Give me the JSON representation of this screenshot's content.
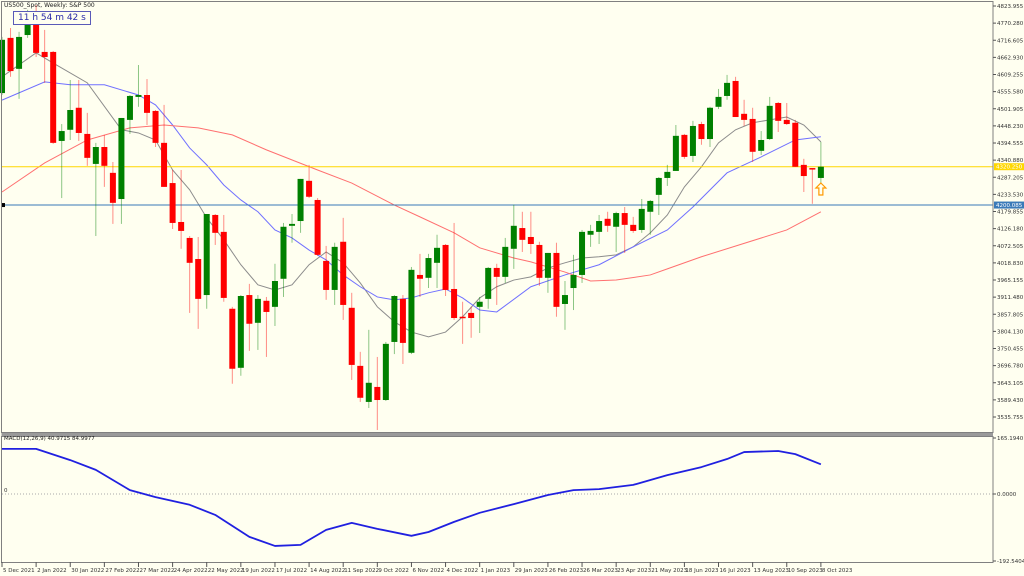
{
  "window": {
    "title": "US500_Spot, Weekly:  S&P 500",
    "timer": "11 h 54 m 42 s"
  },
  "colors": {
    "background": "#fffff0",
    "bull": "#008000",
    "bear": "#ff0000",
    "ma_fast": "#8c8c8c",
    "ma_mid": "#7070ff",
    "ma_slow": "#ff7070",
    "macd": "#2020e0",
    "hline_price": "#ffd700",
    "hline_level": "#3a7ab8",
    "arrow": "#ff9900"
  },
  "chart_data": [
    {
      "type": "candlestick",
      "title": "US500_Spot, Weekly:  S&P 500",
      "price_ticks": [
        "4823.955",
        "4770.280",
        "4716.605",
        "4662.930",
        "4609.255",
        "4555.580",
        "4501.905",
        "4448.230",
        "4394.555",
        "4340.880",
        "4287.205",
        "4233.530",
        "4179.855",
        "4126.180",
        "4072.505",
        "4018.830",
        "3965.155",
        "3911.480",
        "3857.805",
        "3804.130",
        "3750.455",
        "3696.780",
        "3643.105",
        "3589.430",
        "3535.755"
      ],
      "ylim": [
        3535.755,
        4823.955
      ],
      "date_labels": [
        {
          "i": 0,
          "label": "5 Dec 2021"
        },
        {
          "i": 4,
          "label": "2 Jan 2022"
        },
        {
          "i": 8,
          "label": "30 Jan 2022"
        },
        {
          "i": 12,
          "label": "27 Feb 2022"
        },
        {
          "i": 16,
          "label": "27 Mar 2022"
        },
        {
          "i": 20,
          "label": "24 Apr 2022"
        },
        {
          "i": 24,
          "label": "22 May 2022"
        },
        {
          "i": 28,
          "label": "19 Jun 2022"
        },
        {
          "i": 32,
          "label": "17 Jul 2022"
        },
        {
          "i": 36,
          "label": "14 Aug 2022"
        },
        {
          "i": 40,
          "label": "11 Sep 2022"
        },
        {
          "i": 44,
          "label": "9 Oct 2022"
        },
        {
          "i": 48,
          "label": "6 Nov 2022"
        },
        {
          "i": 52,
          "label": "4 Dec 2022"
        },
        {
          "i": 56,
          "label": "1 Jan 2023"
        },
        {
          "i": 60,
          "label": "29 Jan 2023"
        },
        {
          "i": 64,
          "label": "26 Feb 2023"
        },
        {
          "i": 68,
          "label": "26 Mar 2023"
        },
        {
          "i": 72,
          "label": "23 Apr 2023"
        },
        {
          "i": 76,
          "label": "21 May 2023"
        },
        {
          "i": 80,
          "label": "18 Jun 2023"
        },
        {
          "i": 84,
          "label": "16 Jul 2023"
        },
        {
          "i": 88,
          "label": "13 Aug 2023"
        },
        {
          "i": 92,
          "label": "10 Sep 2023"
        },
        {
          "i": 96,
          "label": "8 Oct 2023"
        }
      ],
      "ohlc": [
        [
          4551,
          4727,
          4545,
          4718
        ],
        [
          4724,
          4755,
          4602,
          4620
        ],
        [
          4627,
          4743,
          4533,
          4727
        ],
        [
          4733,
          4812,
          4724,
          4787
        ],
        [
          4787,
          4827,
          4664,
          4677
        ],
        [
          4680,
          4749,
          4583,
          4664
        ],
        [
          4680,
          4683,
          4392,
          4395
        ],
        [
          4401,
          4454,
          4222,
          4432
        ],
        [
          4436,
          4592,
          4404,
          4498
        ],
        [
          4505,
          4592,
          4401,
          4426
        ],
        [
          4423,
          4489,
          4323,
          4348
        ],
        [
          4329,
          4395,
          4103,
          4382
        ],
        [
          4382,
          4420,
          4257,
          4323
        ],
        [
          4301,
          4335,
          4141,
          4207
        ],
        [
          4219,
          4473,
          4141,
          4473
        ],
        [
          4467,
          4545,
          4423,
          4542
        ],
        [
          4539,
          4639,
          4508,
          4545
        ],
        [
          4545,
          4595,
          4451,
          4489
        ],
        [
          4495,
          4498,
          4382,
          4395
        ],
        [
          4395,
          4514,
          4257,
          4257
        ],
        [
          4269,
          4310,
          4125,
          4144
        ],
        [
          4147,
          4310,
          4063,
          4119
        ],
        [
          4097,
          4103,
          3862,
          4019
        ],
        [
          4031,
          4100,
          3812,
          3906
        ],
        [
          3918,
          4172,
          3875,
          4172
        ],
        [
          4169,
          4172,
          4075,
          4113
        ],
        [
          4116,
          4169,
          3897,
          3909
        ],
        [
          3875,
          3881,
          3640,
          3687
        ],
        [
          3690,
          3918,
          3665,
          3915
        ],
        [
          3918,
          3953,
          3743,
          3828
        ],
        [
          3831,
          3918,
          3746,
          3906
        ],
        [
          3900,
          3912,
          3724,
          3865
        ],
        [
          3881,
          4016,
          3821,
          3962
        ],
        [
          3969,
          4144,
          3912,
          4132
        ],
        [
          4135,
          4172,
          4082,
          4141
        ],
        [
          4150,
          4282,
          4113,
          4282
        ],
        [
          4276,
          4326,
          4222,
          4226
        ],
        [
          4216,
          4222,
          4041,
          4044
        ],
        [
          4025,
          4072,
          3903,
          3934
        ],
        [
          3934,
          4082,
          3887,
          4069
        ],
        [
          4085,
          4160,
          3840,
          3887
        ],
        [
          3878,
          3925,
          3652,
          3699
        ],
        [
          3696,
          3740,
          3583,
          3596
        ],
        [
          3583,
          3809,
          3564,
          3643
        ],
        [
          3630,
          3724,
          3495,
          3589
        ],
        [
          3589,
          3771,
          3586,
          3765
        ],
        [
          3771,
          3918,
          3733,
          3915
        ],
        [
          3906,
          3918,
          3702,
          3768
        ],
        [
          3737,
          4006,
          3733,
          3997
        ],
        [
          3981,
          4047,
          3912,
          3969
        ],
        [
          3972,
          4047,
          3940,
          4034
        ],
        [
          4019,
          4107,
          3940,
          4066
        ],
        [
          4075,
          4078,
          3915,
          3934
        ],
        [
          3937,
          4144,
          3840,
          3846
        ],
        [
          3850,
          3897,
          3765,
          3846
        ],
        [
          3862,
          3881,
          3784,
          3846
        ],
        [
          3881,
          3912,
          3799,
          3897
        ],
        [
          3906,
          4006,
          3875,
          4003
        ],
        [
          4003,
          4016,
          3887,
          3975
        ],
        [
          3975,
          4097,
          3956,
          4069
        ],
        [
          4063,
          4201,
          4000,
          4135
        ],
        [
          4128,
          4179,
          4053,
          4091
        ],
        [
          4100,
          4179,
          4047,
          4078
        ],
        [
          4075,
          4085,
          3947,
          3972
        ],
        [
          3972,
          4050,
          3925,
          4050
        ],
        [
          4050,
          4082,
          3850,
          3881
        ],
        [
          3890,
          3962,
          3809,
          3918
        ],
        [
          3940,
          4044,
          3871,
          3981
        ],
        [
          3981,
          4122,
          3956,
          4116
        ],
        [
          4107,
          4138,
          4069,
          4119
        ],
        [
          4116,
          4169,
          4078,
          4150
        ],
        [
          4157,
          4179,
          4116,
          4135
        ],
        [
          4132,
          4179,
          4053,
          4175
        ],
        [
          4175,
          4194,
          4050,
          4138
        ],
        [
          4138,
          4163,
          4113,
          4119
        ],
        [
          4122,
          4219,
          4113,
          4188
        ],
        [
          4179,
          4216,
          4107,
          4213
        ],
        [
          4232,
          4288,
          4169,
          4285
        ],
        [
          4285,
          4326,
          4260,
          4304
        ],
        [
          4307,
          4451,
          4307,
          4417
        ],
        [
          4420,
          4423,
          4345,
          4351
        ],
        [
          4354,
          4464,
          4335,
          4448
        ],
        [
          4454,
          4461,
          4389,
          4407
        ],
        [
          4407,
          4508,
          4382,
          4505
        ],
        [
          4508,
          4564,
          4501,
          4539
        ],
        [
          4542,
          4608,
          4530,
          4583
        ],
        [
          4589,
          4602,
          4476,
          4476
        ],
        [
          4486,
          4530,
          4448,
          4467
        ],
        [
          4470,
          4505,
          4335,
          4367
        ],
        [
          4370,
          4432,
          4357,
          4404
        ],
        [
          4407,
          4539,
          4404,
          4511
        ],
        [
          4520,
          4523,
          4429,
          4464
        ],
        [
          4467,
          4520,
          4451,
          4454
        ],
        [
          4458,
          4467,
          4320,
          4320
        ],
        [
          4326,
          4345,
          4241,
          4291
        ],
        [
          4316,
          4316,
          4204,
          4313
        ],
        [
          4285,
          4398,
          4269,
          4320.25
        ]
      ],
      "ma_fast": [
        [
          0,
          4602
        ],
        [
          4,
          4677
        ],
        [
          6,
          4645
        ],
        [
          10,
          4583
        ],
        [
          14,
          4436
        ],
        [
          16,
          4426
        ],
        [
          18,
          4404
        ],
        [
          20,
          4310
        ],
        [
          22,
          4248
        ],
        [
          24,
          4160
        ],
        [
          26,
          4091
        ],
        [
          28,
          4013
        ],
        [
          30,
          3950
        ],
        [
          32,
          3934
        ],
        [
          34,
          3950
        ],
        [
          36,
          4013
        ],
        [
          38,
          4053
        ],
        [
          40,
          4019
        ],
        [
          42,
          3956
        ],
        [
          44,
          3881
        ],
        [
          46,
          3834
        ],
        [
          48,
          3802
        ],
        [
          50,
          3787
        ],
        [
          52,
          3802
        ],
        [
          54,
          3850
        ],
        [
          56,
          3909
        ],
        [
          58,
          3944
        ],
        [
          60,
          3965
        ],
        [
          62,
          3975
        ],
        [
          64,
          4003
        ],
        [
          66,
          4019
        ],
        [
          68,
          4034
        ],
        [
          70,
          4038
        ],
        [
          72,
          4044
        ],
        [
          74,
          4069
        ],
        [
          76,
          4113
        ],
        [
          78,
          4169
        ],
        [
          80,
          4257
        ],
        [
          82,
          4320
        ],
        [
          84,
          4395
        ],
        [
          86,
          4436
        ],
        [
          88,
          4458
        ],
        [
          90,
          4467
        ],
        [
          92,
          4476
        ],
        [
          94,
          4451
        ],
        [
          96,
          4398
        ]
      ],
      "ma_mid": [
        [
          0,
          4529
        ],
        [
          5,
          4586
        ],
        [
          8,
          4577
        ],
        [
          12,
          4577
        ],
        [
          16,
          4545
        ],
        [
          18,
          4514
        ],
        [
          20,
          4451
        ],
        [
          22,
          4379
        ],
        [
          24,
          4326
        ],
        [
          26,
          4263
        ],
        [
          28,
          4216
        ],
        [
          30,
          4179
        ],
        [
          32,
          4122
        ],
        [
          34,
          4097
        ],
        [
          36,
          4059
        ],
        [
          38,
          4028
        ],
        [
          40,
          3981
        ],
        [
          42,
          3944
        ],
        [
          44,
          3912
        ],
        [
          46,
          3903
        ],
        [
          48,
          3909
        ],
        [
          50,
          3925
        ],
        [
          52,
          3937
        ],
        [
          54,
          3909
        ],
        [
          56,
          3871
        ],
        [
          58,
          3865
        ],
        [
          62,
          3944
        ],
        [
          66,
          3981
        ],
        [
          70,
          4013
        ],
        [
          74,
          4069
        ],
        [
          78,
          4122
        ],
        [
          81,
          4194
        ],
        [
          85,
          4301
        ],
        [
          89,
          4351
        ],
        [
          93,
          4404
        ],
        [
          96,
          4414
        ]
      ],
      "ma_slow": [
        [
          0,
          4241
        ],
        [
          5,
          4332
        ],
        [
          10,
          4404
        ],
        [
          15,
          4442
        ],
        [
          19,
          4451
        ],
        [
          23,
          4442
        ],
        [
          27,
          4420
        ],
        [
          31,
          4373
        ],
        [
          37,
          4310
        ],
        [
          41,
          4269
        ],
        [
          46,
          4200
        ],
        [
          49,
          4163
        ],
        [
          53,
          4113
        ],
        [
          56,
          4066
        ],
        [
          60,
          4034
        ],
        [
          62,
          4022
        ],
        [
          66,
          3990
        ],
        [
          69,
          3962
        ],
        [
          72,
          3965
        ],
        [
          76,
          3981
        ],
        [
          78,
          4000
        ],
        [
          82,
          4038
        ],
        [
          92,
          4122
        ],
        [
          96,
          4179
        ]
      ],
      "hlines": [
        {
          "name": "current-price",
          "value": 4320.25,
          "label": "4320.250"
        },
        {
          "name": "level",
          "value": 4200.085,
          "label": "4200.085"
        }
      ],
      "arrow_signal": {
        "i": 96,
        "value": 4241,
        "direction": "up"
      }
    },
    {
      "type": "line",
      "indicator_label": "MACD(12,26,9) 40.9715 84.9977",
      "y_ticks": [
        "165.1940",
        "0.0000",
        "-192.5404"
      ],
      "zero_label": "0",
      "ylim": [
        -192.5404,
        165.194
      ],
      "signal": [
        [
          0,
          129
        ],
        [
          4,
          129
        ],
        [
          8,
          97
        ],
        [
          11,
          69
        ],
        [
          15,
          11
        ],
        [
          18,
          -9
        ],
        [
          22,
          -31
        ],
        [
          25,
          -60
        ],
        [
          29,
          -123
        ],
        [
          32,
          -149
        ],
        [
          35,
          -146
        ],
        [
          38,
          -103
        ],
        [
          41,
          -83
        ],
        [
          44,
          -100
        ],
        [
          48,
          -120
        ],
        [
          50,
          -109
        ],
        [
          53,
          -80
        ],
        [
          56,
          -54
        ],
        [
          60,
          -29
        ],
        [
          64,
          -3
        ],
        [
          67,
          11
        ],
        [
          70,
          14
        ],
        [
          74,
          26
        ],
        [
          78,
          54
        ],
        [
          82,
          77
        ],
        [
          85,
          100
        ],
        [
          87,
          120
        ],
        [
          91,
          123
        ],
        [
          93,
          114
        ],
        [
          96,
          85
        ]
      ]
    }
  ]
}
